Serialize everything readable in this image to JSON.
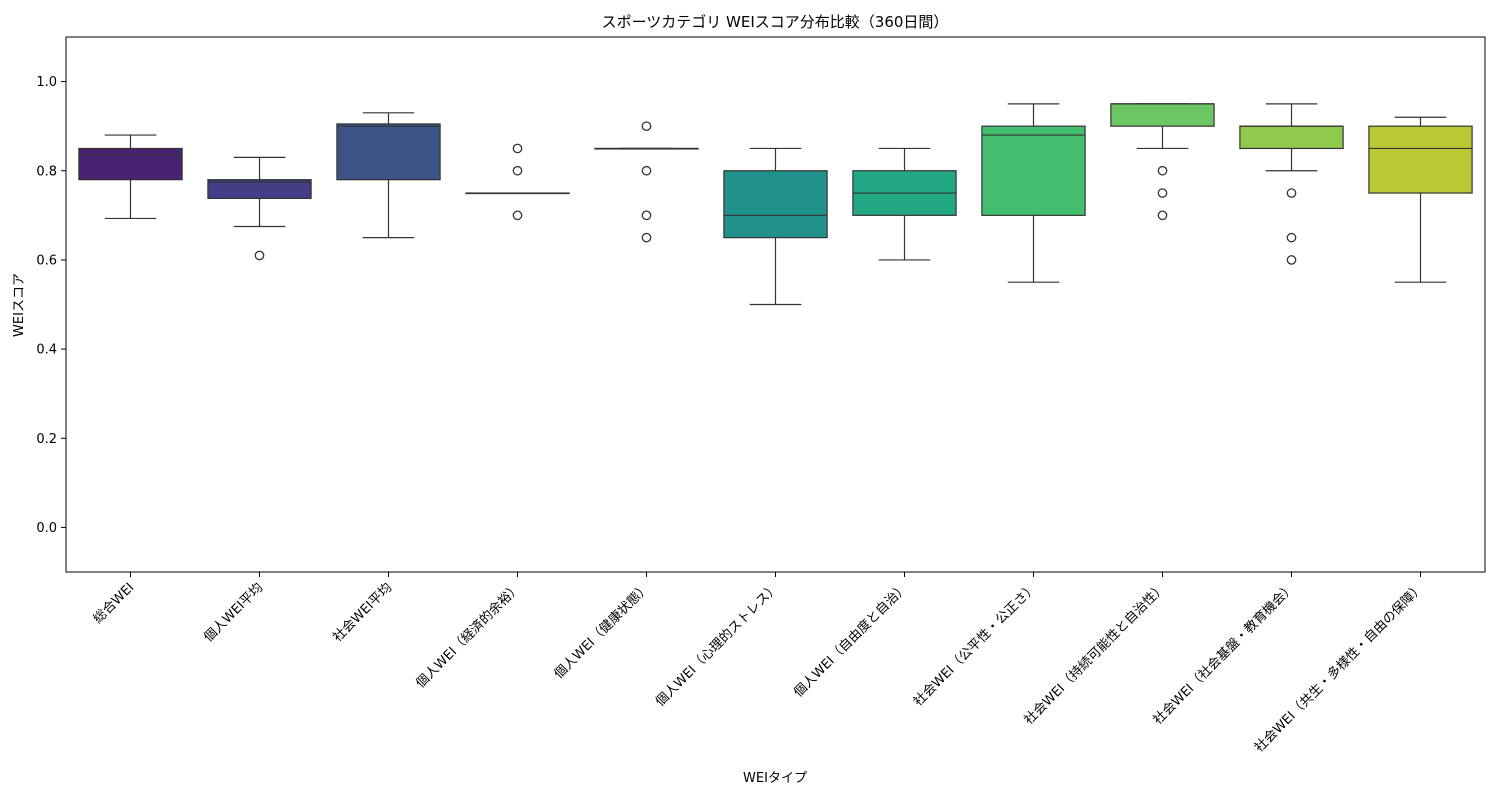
{
  "chart_data": {
    "type": "box",
    "title": "スポーツカテゴリ WEIスコア分布比較（360日間）",
    "xlabel": "WEIタイプ",
    "ylabel": "WEIスコア",
    "ylim": [
      -0.1,
      1.1
    ],
    "yticks": [
      "0.0",
      "0.2",
      "0.4",
      "0.6",
      "0.8",
      "1.0"
    ],
    "grid": false,
    "categories": [
      "総合WEI",
      "個人WEI平均",
      "社会WEI平均",
      "個人WEI（経済的余裕）",
      "個人WEI（健康状態）",
      "個人WEI（心理的ストレス）",
      "個人WEI（自由度と自治）",
      "社会WEI（公平性・公正さ）",
      "社会WEI（持続可能性と自治性）",
      "社会WEI（社会基盤・教育機会）",
      "社会WEI（共生・多様性・自由の保障）"
    ],
    "boxes": [
      {
        "q1": 0.78,
        "median": 0.835,
        "q3": 0.85,
        "whisker_low": 0.693,
        "whisker_high": 0.88,
        "outliers": [],
        "color": "#482374"
      },
      {
        "q1": 0.738,
        "median": 0.775,
        "q3": 0.78,
        "whisker_low": 0.675,
        "whisker_high": 0.83,
        "outliers": [
          0.61
        ],
        "color": "#433e85"
      },
      {
        "q1": 0.78,
        "median": 0.9,
        "q3": 0.905,
        "whisker_low": 0.65,
        "whisker_high": 0.93,
        "outliers": [],
        "color": "#3c5488"
      },
      {
        "q1": 0.75,
        "median": 0.75,
        "q3": 0.75,
        "whisker_low": 0.75,
        "whisker_high": 0.75,
        "outliers": [
          0.85,
          0.8,
          0.7
        ],
        "color": "#31688e"
      },
      {
        "q1": 0.85,
        "median": 0.85,
        "q3": 0.85,
        "whisker_low": 0.85,
        "whisker_high": 0.85,
        "outliers": [
          0.9,
          0.8,
          0.7,
          0.65
        ],
        "color": "#2a788e"
      },
      {
        "q1": 0.65,
        "median": 0.7,
        "q3": 0.8,
        "whisker_low": 0.5,
        "whisker_high": 0.85,
        "outliers": [],
        "color": "#21918c"
      },
      {
        "q1": 0.7,
        "median": 0.75,
        "q3": 0.8,
        "whisker_low": 0.6,
        "whisker_high": 0.85,
        "outliers": [],
        "color": "#22a884"
      },
      {
        "q1": 0.7,
        "median": 0.88,
        "q3": 0.9,
        "whisker_low": 0.55,
        "whisker_high": 0.95,
        "outliers": [],
        "color": "#44bf70"
      },
      {
        "q1": 0.9,
        "median": 0.95,
        "q3": 0.95,
        "whisker_low": 0.85,
        "whisker_high": 0.95,
        "outliers": [
          0.8,
          0.75,
          0.7
        ],
        "color": "#6cc664"
      },
      {
        "q1": 0.85,
        "median": 0.9,
        "q3": 0.9,
        "whisker_low": 0.8,
        "whisker_high": 0.95,
        "outliers": [
          0.75,
          0.65,
          0.6
        ],
        "color": "#8fca4d"
      },
      {
        "q1": 0.75,
        "median": 0.85,
        "q3": 0.9,
        "whisker_low": 0.55,
        "whisker_high": 0.92,
        "outliers": [],
        "color": "#b8c934"
      }
    ]
  }
}
